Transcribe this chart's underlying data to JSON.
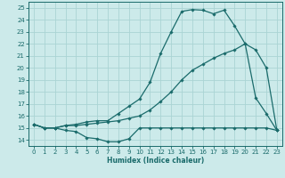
{
  "xlabel": "Humidex (Indice chaleur)",
  "bg_color": "#cceaea",
  "grid_color": "#aad4d4",
  "line_color": "#1a6b6b",
  "spine_color": "#1a6b6b",
  "xlim": [
    -0.5,
    23.5
  ],
  "ylim": [
    13.5,
    25.5
  ],
  "xticks": [
    0,
    1,
    2,
    3,
    4,
    5,
    6,
    7,
    8,
    9,
    10,
    11,
    12,
    13,
    14,
    15,
    16,
    17,
    18,
    19,
    20,
    21,
    22,
    23
  ],
  "yticks": [
    14,
    15,
    16,
    17,
    18,
    19,
    20,
    21,
    22,
    23,
    24,
    25
  ],
  "line1_x": [
    0,
    1,
    2,
    3,
    4,
    5,
    6,
    7,
    8,
    9,
    10,
    11,
    12,
    13,
    14,
    15,
    16,
    17,
    18,
    19,
    20,
    21,
    22,
    23
  ],
  "line1_y": [
    15.3,
    15.0,
    15.0,
    14.8,
    14.7,
    14.2,
    14.1,
    13.85,
    13.85,
    14.1,
    15.0,
    15.0,
    15.0,
    15.0,
    15.0,
    15.0,
    15.0,
    15.0,
    15.0,
    15.0,
    15.0,
    15.0,
    15.0,
    14.8
  ],
  "line2_x": [
    0,
    1,
    2,
    3,
    4,
    5,
    6,
    7,
    8,
    9,
    10,
    11,
    12,
    13,
    14,
    15,
    16,
    17,
    18,
    19,
    20,
    21,
    22,
    23
  ],
  "line2_y": [
    15.3,
    15.0,
    15.0,
    15.2,
    15.2,
    15.3,
    15.4,
    15.5,
    15.6,
    15.8,
    16.0,
    16.5,
    17.2,
    18.0,
    19.0,
    19.8,
    20.3,
    20.8,
    21.2,
    21.5,
    22.0,
    21.5,
    20.0,
    14.8
  ],
  "line3_x": [
    0,
    1,
    2,
    3,
    4,
    5,
    6,
    7,
    8,
    9,
    10,
    11,
    12,
    13,
    14,
    15,
    16,
    17,
    18,
    19,
    20,
    21,
    22,
    23
  ],
  "line3_y": [
    15.3,
    15.0,
    15.0,
    15.2,
    15.3,
    15.5,
    15.6,
    15.6,
    16.2,
    16.8,
    17.4,
    18.8,
    21.2,
    23.0,
    24.7,
    24.85,
    24.8,
    24.5,
    24.8,
    23.5,
    22.0,
    17.5,
    16.2,
    14.8
  ]
}
